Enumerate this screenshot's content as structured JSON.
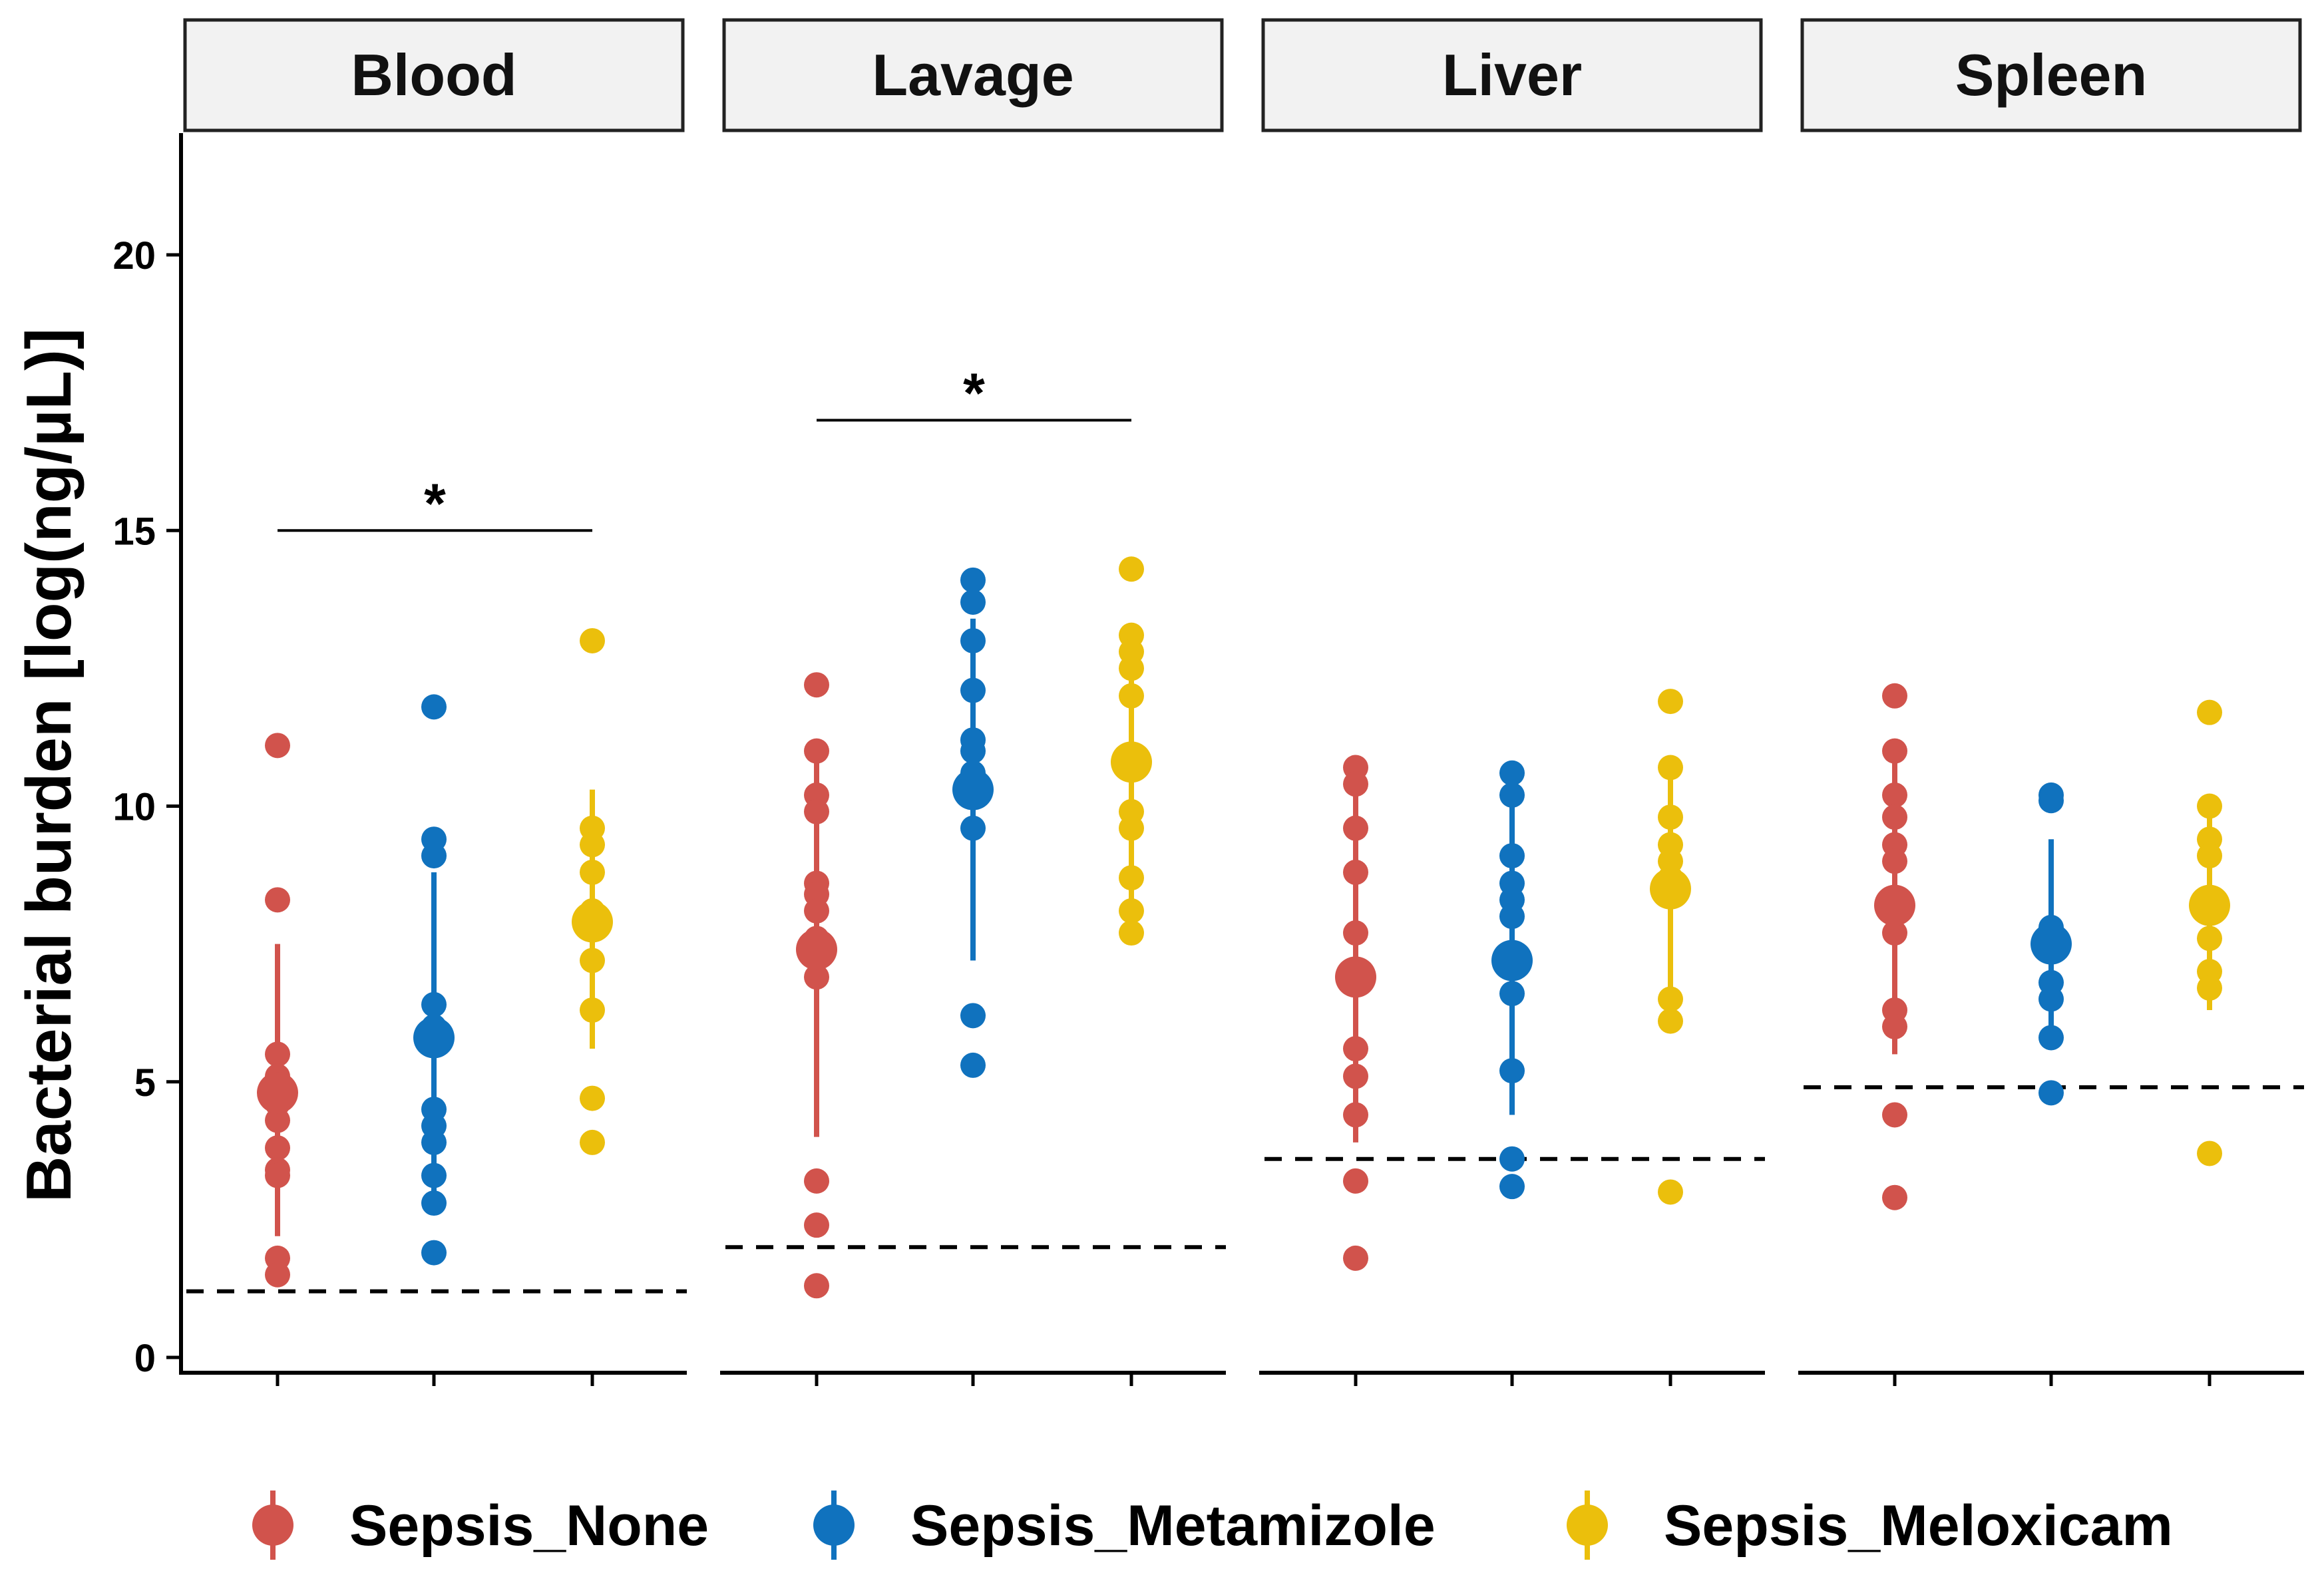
{
  "chart_data": {
    "type": "scatter",
    "subtype": "faceted dot plot with mean and error bars",
    "ylabel": "Bacterial burden [log(ng/µL)]",
    "ylim": [
      0,
      22
    ],
    "y_ticks": [
      0,
      5,
      10,
      15,
      20
    ],
    "x_tick_labels_shown": false,
    "legend": {
      "position": "bottom",
      "entries": [
        {
          "name": "Sepsis_None",
          "color": "#D1534C"
        },
        {
          "name": "Sepsis_Metamizole",
          "color": "#1072BE"
        },
        {
          "name": "Sepsis_Meloxicam",
          "color": "#EBBF0C"
        }
      ]
    },
    "facets": [
      {
        "title": "Blood",
        "detection_limit": 1.2,
        "significance": [
          {
            "from_group": 0,
            "to_group": 2,
            "y": 15.0,
            "label": "*"
          }
        ],
        "groups": [
          {
            "name": "Sepsis_None",
            "mean": 4.8,
            "err_low": 2.2,
            "err_high": 7.5,
            "points": [
              11.1,
              8.3,
              5.5,
              5.1,
              4.9,
              4.6,
              4.3,
              3.8,
              3.4,
              3.3,
              1.8,
              1.5
            ]
          },
          {
            "name": "Sepsis_Metamizole",
            "mean": 5.8,
            "err_low": 2.8,
            "err_high": 8.8,
            "points": [
              11.8,
              9.4,
              9.1,
              6.4,
              6.0,
              4.5,
              4.2,
              3.9,
              3.3,
              2.8,
              1.9
            ]
          },
          {
            "name": "Sepsis_Meloxicam",
            "mean": 7.9,
            "err_low": 5.6,
            "err_high": 10.3,
            "points": [
              13.0,
              9.6,
              9.3,
              8.8,
              8.1,
              7.9,
              7.8,
              7.2,
              6.3,
              4.7,
              3.9
            ]
          }
        ]
      },
      {
        "title": "Lavage",
        "detection_limit": 2.0,
        "significance": [
          {
            "from_group": 0,
            "to_group": 2,
            "y": 17.0,
            "label": "*"
          }
        ],
        "groups": [
          {
            "name": "Sepsis_None",
            "mean": 7.4,
            "err_low": 4.0,
            "err_high": 10.8,
            "points": [
              12.2,
              11.0,
              10.2,
              9.9,
              8.6,
              8.4,
              8.1,
              7.6,
              6.9,
              3.2,
              2.4,
              1.3
            ]
          },
          {
            "name": "Sepsis_Metamizole",
            "mean": 10.3,
            "err_low": 7.2,
            "err_high": 13.4,
            "points": [
              14.1,
              13.7,
              13.0,
              12.1,
              11.2,
              11.0,
              10.6,
              9.6,
              6.2,
              5.3
            ]
          },
          {
            "name": "Sepsis_Meloxicam",
            "mean": 10.8,
            "err_low": 8.3,
            "err_high": 13.2,
            "points": [
              14.3,
              13.1,
              12.8,
              12.5,
              12.0,
              9.9,
              9.6,
              8.7,
              8.1,
              7.7
            ]
          }
        ]
      },
      {
        "title": "Liver",
        "detection_limit": 3.6,
        "significance": [],
        "groups": [
          {
            "name": "Sepsis_None",
            "mean": 6.9,
            "err_low": 3.9,
            "err_high": 10.5,
            "points": [
              10.7,
              10.4,
              9.6,
              8.8,
              7.7,
              5.6,
              5.1,
              4.4,
              3.2,
              1.8
            ]
          },
          {
            "name": "Sepsis_Metamizole",
            "mean": 7.2,
            "err_low": 4.4,
            "err_high": 10.2,
            "points": [
              10.6,
              10.2,
              9.1,
              8.6,
              8.3,
              8.0,
              6.6,
              5.2,
              3.6,
              3.1
            ]
          },
          {
            "name": "Sepsis_Meloxicam",
            "mean": 8.5,
            "err_low": 6.4,
            "err_high": 10.6,
            "points": [
              11.9,
              10.7,
              9.8,
              9.3,
              9.0,
              8.7,
              6.5,
              6.1,
              3.0
            ]
          }
        ]
      },
      {
        "title": "Spleen",
        "detection_limit": 4.9,
        "significance": [],
        "groups": [
          {
            "name": "Sepsis_None",
            "mean": 8.2,
            "err_low": 5.5,
            "err_high": 10.9,
            "points": [
              12.0,
              11.0,
              10.2,
              9.8,
              9.3,
              9.0,
              7.7,
              6.3,
              6.0,
              4.4,
              2.9
            ]
          },
          {
            "name": "Sepsis_Metamizole",
            "mean": 7.5,
            "err_low": 5.7,
            "err_high": 9.4,
            "points": [
              10.2,
              10.1,
              7.8,
              7.4,
              6.8,
              6.5,
              5.8,
              4.8
            ]
          },
          {
            "name": "Sepsis_Meloxicam",
            "mean": 8.2,
            "err_low": 6.3,
            "err_high": 10.1,
            "points": [
              11.7,
              10.0,
              9.4,
              9.1,
              8.2,
              7.6,
              7.0,
              6.7,
              3.7
            ]
          }
        ]
      }
    ]
  }
}
